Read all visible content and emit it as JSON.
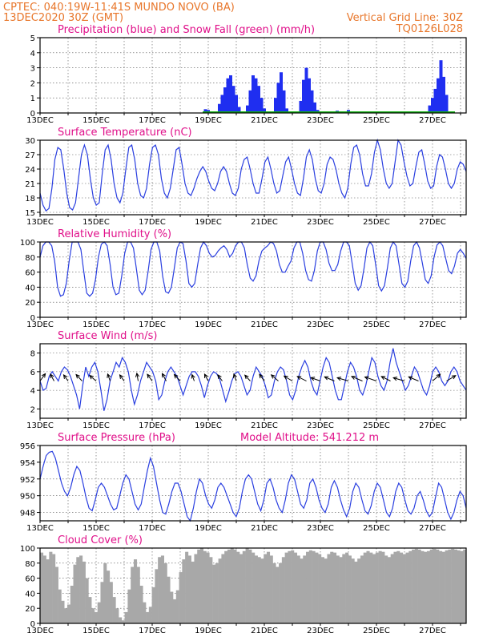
{
  "header": {
    "station": "CPTEC:   040:19W-11:41S   MUNDO NOVO (BA)",
    "init": "13DEC2020 30Z (GMT)",
    "grid_note": "Vertical Grid Line: 30Z",
    "code": "TQ0126L028"
  },
  "colors": {
    "header": "#e8762a",
    "title": "#e0108a",
    "precip": "#1f2ef0",
    "snow": "#10b010",
    "line": "#2a3fe0",
    "cloud": "#a8a8a8",
    "wind_vec": "#000000"
  },
  "date_labels": [
    "13DEC",
    "15DEC",
    "17DEC",
    "19DEC",
    "21DEC",
    "23DEC",
    "25DEC",
    "27DEC"
  ],
  "chart_data": [
    {
      "type": "bar",
      "id": "precip",
      "title": "Precipitation (blue) and Snow Fall (green) (mm/h)",
      "ylim": [
        0,
        5
      ],
      "yticks": [
        "0",
        "1",
        "2",
        "3",
        "4",
        "5"
      ],
      "x_units": "days after 13DEC2020 30Z",
      "series": [
        {
          "name": "Precipitation",
          "points": [
            [
              5.9,
              0.25
            ],
            [
              6.0,
              0.2
            ],
            [
              6.4,
              0.6
            ],
            [
              6.5,
              1.2
            ],
            [
              6.6,
              1.7
            ],
            [
              6.7,
              2.3
            ],
            [
              6.8,
              2.5
            ],
            [
              6.9,
              1.8
            ],
            [
              7.0,
              1.2
            ],
            [
              7.1,
              0.4
            ],
            [
              7.4,
              0.5
            ],
            [
              7.5,
              1.5
            ],
            [
              7.6,
              2.5
            ],
            [
              7.7,
              2.3
            ],
            [
              7.8,
              1.8
            ],
            [
              7.9,
              1.0
            ],
            [
              8.0,
              0.3
            ],
            [
              8.4,
              1.0
            ],
            [
              8.5,
              2.0
            ],
            [
              8.6,
              2.7
            ],
            [
              8.7,
              1.5
            ],
            [
              8.8,
              0.3
            ],
            [
              9.3,
              0.8
            ],
            [
              9.4,
              2.2
            ],
            [
              9.5,
              3.0
            ],
            [
              9.6,
              2.3
            ],
            [
              9.7,
              1.5
            ],
            [
              9.8,
              0.7
            ],
            [
              9.9,
              0.2
            ],
            [
              10.6,
              0.15
            ],
            [
              11.0,
              0.2
            ],
            [
              13.9,
              0.5
            ],
            [
              14.0,
              1.0
            ],
            [
              14.1,
              1.6
            ],
            [
              14.2,
              2.3
            ],
            [
              14.3,
              3.5
            ],
            [
              14.4,
              2.4
            ],
            [
              14.5,
              1.2
            ]
          ]
        },
        {
          "name": "Snow Fall",
          "points": [
            [
              0,
              0
            ]
          ]
        }
      ]
    },
    {
      "type": "line",
      "id": "temperature",
      "title": "Surface Temperature (nC)",
      "ylim": [
        14.5,
        30
      ],
      "yticks": [
        "15",
        "18",
        "21",
        "24",
        "27",
        "30"
      ],
      "series": [
        {
          "values": [
            19,
            16.5,
            15.3,
            15.8,
            20,
            26,
            28.5,
            28,
            24,
            19,
            16,
            15.5,
            17,
            22,
            27,
            29,
            27,
            22,
            18,
            16.5,
            17,
            23,
            28,
            29,
            26,
            21,
            18,
            17,
            19,
            24,
            28.5,
            29,
            26,
            21,
            18.5,
            18,
            20,
            25,
            28.5,
            29,
            27,
            22,
            19,
            18,
            20,
            24,
            28,
            28.5,
            25,
            21,
            19,
            18.5,
            20,
            22,
            23.5,
            24.5,
            23.5,
            21.5,
            20,
            19.5,
            21,
            23.5,
            24.5,
            23.5,
            21,
            19,
            18.5,
            20,
            24,
            26,
            26.5,
            24,
            21,
            19,
            19,
            22,
            25.5,
            26.5,
            24,
            21,
            19,
            19.5,
            22.5,
            25.5,
            26.5,
            24,
            21,
            19,
            18.5,
            22,
            26.5,
            28,
            26,
            22,
            19.5,
            19,
            21,
            25,
            26.5,
            26,
            24,
            21,
            19,
            18,
            20,
            25,
            28.5,
            29,
            27,
            23,
            20.5,
            20.5,
            23,
            27.5,
            30,
            28,
            24,
            21,
            20,
            21,
            25.5,
            30,
            29,
            25.5,
            22.5,
            20.5,
            21,
            24.5,
            27.5,
            28,
            25,
            21.5,
            20,
            20.5,
            24.5,
            27,
            26.5,
            24,
            21,
            20,
            21,
            24,
            25.5,
            25,
            23.5
          ]
        }
      ]
    },
    {
      "type": "line",
      "id": "humidity",
      "title": "Relative Humidity (%)",
      "ylim": [
        0,
        100
      ],
      "yticks": [
        "0",
        "20",
        "40",
        "60",
        "80",
        "100"
      ],
      "series": [
        {
          "values": [
            80,
            95,
            100,
            100,
            95,
            75,
            40,
            28,
            30,
            45,
            75,
            100,
            100,
            100,
            90,
            60,
            32,
            28,
            32,
            50,
            80,
            97,
            100,
            95,
            70,
            40,
            30,
            32,
            55,
            85,
            100,
            100,
            92,
            65,
            36,
            30,
            36,
            60,
            90,
            100,
            100,
            88,
            55,
            34,
            32,
            40,
            65,
            92,
            100,
            98,
            75,
            45,
            40,
            45,
            70,
            92,
            100,
            95,
            85,
            80,
            82,
            88,
            92,
            95,
            90,
            80,
            85,
            95,
            100,
            100,
            92,
            70,
            52,
            48,
            55,
            75,
            88,
            92,
            95,
            100,
            98,
            88,
            70,
            60,
            60,
            68,
            75,
            92,
            100,
            100,
            85,
            62,
            50,
            48,
            62,
            88,
            100,
            100,
            90,
            72,
            62,
            62,
            70,
            88,
            100,
            100,
            95,
            70,
            45,
            36,
            42,
            65,
            92,
            100,
            95,
            70,
            42,
            35,
            42,
            65,
            92,
            100,
            95,
            70,
            45,
            40,
            48,
            75,
            95,
            100,
            92,
            72,
            50,
            45,
            55,
            80,
            96,
            100,
            95,
            78,
            62,
            58,
            68,
            85,
            90,
            85,
            78
          ]
        }
      ]
    },
    {
      "type": "line",
      "id": "wind",
      "title": "Surface Wind (m/s)",
      "ylim": [
        1,
        9
      ],
      "yticks": [
        "2",
        "4",
        "6",
        "8"
      ],
      "series": [
        {
          "values": [
            5,
            4,
            4.2,
            5.5,
            6,
            5.5,
            5,
            6,
            6.5,
            6.2,
            5.5,
            4.5,
            3.5,
            2,
            4.5,
            6.5,
            5.5,
            6.5,
            7,
            6,
            4,
            1.8,
            3,
            5,
            6,
            7,
            6.5,
            7.5,
            7,
            6,
            4,
            2.5,
            3.5,
            5,
            6,
            7,
            6.5,
            6,
            5,
            3,
            3.5,
            5,
            6,
            6.5,
            6,
            5.5,
            4.5,
            3.5,
            4.5,
            5.5,
            6,
            6,
            5.5,
            4.5,
            3.2,
            4.5,
            5.5,
            6,
            5.8,
            5.2,
            4,
            2.8,
            3.8,
            5,
            5.8,
            6,
            5.5,
            4.5,
            3.5,
            4,
            5.5,
            6.5,
            6,
            5.5,
            4.5,
            3.2,
            3.5,
            5,
            6,
            6.5,
            6.2,
            5,
            3.5,
            3,
            4,
            5.5,
            6.5,
            7.2,
            6.5,
            5,
            4,
            3.5,
            5,
            6.5,
            7.5,
            7,
            5.5,
            4,
            3,
            3,
            4.5,
            6,
            7,
            6.5,
            5.5,
            4,
            3.5,
            4.5,
            6,
            7.5,
            7,
            5.5,
            4.5,
            4,
            5,
            7,
            8.5,
            7,
            6,
            5,
            4,
            4.5,
            5.5,
            6.5,
            6,
            5,
            4,
            3.5,
            4.5,
            6,
            6.5,
            6,
            5,
            4.5,
            5,
            6,
            6.5,
            6,
            5,
            4.5,
            4
          ]
        }
      ],
      "vectors": [
        {
          "x": 0.0,
          "dir": 110,
          "mag": 1.2
        },
        {
          "x": 0.5,
          "dir": 75,
          "mag": 1.1
        },
        {
          "x": 1.0,
          "dir": 70,
          "mag": 1.0
        },
        {
          "x": 1.5,
          "dir": 65,
          "mag": 1.1
        },
        {
          "x": 2.0,
          "dir": 60,
          "mag": 1.0
        },
        {
          "x": 2.5,
          "dir": 80,
          "mag": 1.1
        },
        {
          "x": 3.0,
          "dir": 70,
          "mag": 1.0
        },
        {
          "x": 3.5,
          "dir": 85,
          "mag": 1.2
        },
        {
          "x": 4.0,
          "dir": 70,
          "mag": 1.1
        },
        {
          "x": 4.5,
          "dir": 75,
          "mag": 1.2
        },
        {
          "x": 5.0,
          "dir": 65,
          "mag": 1.1
        },
        {
          "x": 5.5,
          "dir": 80,
          "mag": 1.0
        },
        {
          "x": 6.0,
          "dir": 75,
          "mag": 1.1
        },
        {
          "x": 6.5,
          "dir": 70,
          "mag": 1.0
        },
        {
          "x": 7.0,
          "dir": 80,
          "mag": 1.1
        },
        {
          "x": 7.5,
          "dir": 65,
          "mag": 1.0
        },
        {
          "x": 8.0,
          "dir": 70,
          "mag": 1.1
        },
        {
          "x": 8.5,
          "dir": 60,
          "mag": 1.1
        },
        {
          "x": 9.0,
          "dir": 50,
          "mag": 1.0
        },
        {
          "x": 9.5,
          "dir": 45,
          "mag": 1.0
        },
        {
          "x": 10.0,
          "dir": 35,
          "mag": 0.9
        },
        {
          "x": 10.5,
          "dir": 40,
          "mag": 1.0
        },
        {
          "x": 11.0,
          "dir": 30,
          "mag": 1.0
        },
        {
          "x": 11.5,
          "dir": 40,
          "mag": 1.1
        },
        {
          "x": 12.0,
          "dir": 35,
          "mag": 1.1
        },
        {
          "x": 12.5,
          "dir": 45,
          "mag": 1.0
        },
        {
          "x": 13.0,
          "dir": 30,
          "mag": 1.0
        },
        {
          "x": 13.5,
          "dir": 40,
          "mag": 1.0
        },
        {
          "x": 14.0,
          "dir": 120,
          "mag": 1.2
        },
        {
          "x": 14.5,
          "dir": 130,
          "mag": 1.1
        }
      ]
    },
    {
      "type": "line",
      "id": "pressure",
      "title": "Surface Pressure (hPa)",
      "altitude_note": "Model Altitude: 541.212  m",
      "ylim": [
        947,
        956
      ],
      "yticks": [
        "948",
        "950",
        "952",
        "954",
        "956"
      ],
      "series": [
        {
          "values": [
            952,
            953.5,
            954.8,
            955.2,
            955.3,
            954.5,
            953,
            951.5,
            950.5,
            950,
            951,
            952.5,
            953.5,
            953,
            951.5,
            949.8,
            948.5,
            948.2,
            949.5,
            951,
            951.5,
            951,
            950,
            949,
            948.3,
            948.5,
            950,
            951.5,
            952.5,
            952,
            950.5,
            949,
            948.3,
            949,
            951,
            953,
            954.5,
            953.5,
            951.5,
            949.5,
            948,
            947.8,
            949,
            950.5,
            951.5,
            951.5,
            950.5,
            949,
            947.5,
            947,
            948.5,
            950.5,
            952,
            951.5,
            950,
            949,
            948.5,
            949.5,
            951,
            951.5,
            951,
            950,
            949,
            948,
            947.5,
            948.5,
            950.5,
            952,
            952.5,
            952,
            950.5,
            949,
            948.2,
            949.5,
            951.5,
            952,
            951,
            949.5,
            948.5,
            948,
            949.5,
            951.5,
            952.5,
            952,
            950.5,
            949,
            948.5,
            949.5,
            951.5,
            952,
            951,
            949.5,
            948.5,
            948,
            949,
            951,
            951.8,
            951,
            949.5,
            948.3,
            947.5,
            948.5,
            950.5,
            951.5,
            951,
            949.5,
            948.2,
            947.8,
            948.8,
            950.5,
            951.5,
            951,
            949.5,
            948,
            947.5,
            948.5,
            950.5,
            951.5,
            951,
            949.5,
            948.2,
            947.8,
            948.5,
            950,
            950.5,
            949.5,
            948.2,
            947.5,
            948,
            949.8,
            951.5,
            951,
            949.5,
            948,
            947.2,
            948,
            949.5,
            950.5,
            950,
            948.5
          ]
        }
      ]
    },
    {
      "type": "bar",
      "id": "cloud",
      "title": "Cloud Cover (%)",
      "ylim": [
        0,
        100
      ],
      "yticks": [
        "0",
        "20",
        "40",
        "60",
        "80",
        "100"
      ],
      "series": [
        {
          "values": [
            94,
            90,
            85,
            95,
            92,
            75,
            45,
            30,
            20,
            25,
            50,
            78,
            88,
            90,
            82,
            60,
            35,
            20,
            15,
            28,
            55,
            80,
            70,
            55,
            35,
            20,
            8,
            4,
            15,
            45,
            75,
            85,
            75,
            50,
            28,
            15,
            22,
            48,
            72,
            88,
            90,
            80,
            62,
            42,
            32,
            44,
            68,
            85,
            95,
            90,
            82,
            92,
            98,
            100,
            96,
            94,
            88,
            78,
            80,
            86,
            92,
            96,
            98,
            100,
            98,
            95,
            92,
            96,
            100,
            98,
            94,
            90,
            88,
            86,
            92,
            95,
            90,
            80,
            75,
            80,
            88,
            94,
            96,
            97,
            94,
            90,
            86,
            90,
            95,
            97,
            96,
            94,
            92,
            88,
            86,
            92,
            95,
            94,
            90,
            88,
            92,
            94,
            90,
            86,
            82,
            86,
            90,
            94,
            96,
            94,
            92,
            94,
            96,
            95,
            90,
            88,
            92,
            95,
            96,
            94,
            92,
            94,
            96,
            98,
            99,
            98,
            96,
            95,
            96,
            98,
            99,
            98,
            96,
            95,
            97,
            98,
            99,
            98,
            97,
            96,
            98
          ]
        }
      ]
    }
  ]
}
